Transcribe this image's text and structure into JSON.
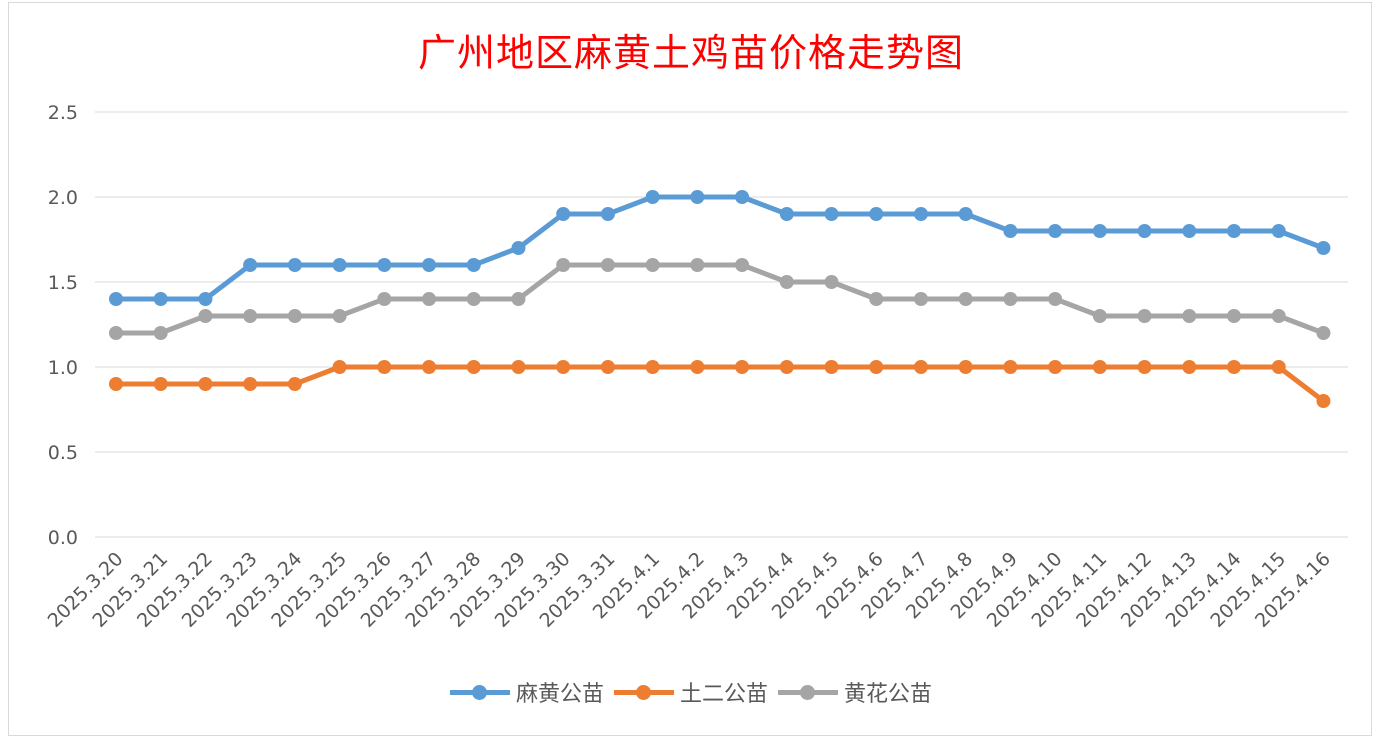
{
  "chart_data": {
    "type": "line",
    "title": "广州地区麻黄土鸡苗价格走势图",
    "xlabel": "",
    "ylabel": "",
    "ylim": [
      0,
      2.5
    ],
    "yticks": [
      "0.0",
      "0.5",
      "1.0",
      "1.5",
      "2.0",
      "2.5"
    ],
    "grid": true,
    "legend_position": "bottom",
    "categories": [
      "2025.3.20",
      "2025.3.21",
      "2025.3.22",
      "2025.3.23",
      "2025.3.24",
      "2025.3.25",
      "2025.3.26",
      "2025.3.27",
      "2025.3.28",
      "2025.3.29",
      "2025.3.30",
      "2025.3.31",
      "2025.4.1",
      "2025.4.2",
      "2025.4.3",
      "2025.4.4",
      "2025.4.5",
      "2025.4.6",
      "2025.4.7",
      "2025.4.8",
      "2025.4.9",
      "2025.4.10",
      "2025.4.11",
      "2025.4.12",
      "2025.4.13",
      "2025.4.14",
      "2025.4.15",
      "2025.4.16"
    ],
    "series": [
      {
        "name": "麻黄公苗",
        "color": "#5b9bd5",
        "values": [
          1.4,
          1.4,
          1.4,
          1.6,
          1.6,
          1.6,
          1.6,
          1.6,
          1.6,
          1.7,
          1.9,
          1.9,
          2.0,
          2.0,
          2.0,
          1.9,
          1.9,
          1.9,
          1.9,
          1.9,
          1.8,
          1.8,
          1.8,
          1.8,
          1.8,
          1.8,
          1.8,
          1.7
        ]
      },
      {
        "name": "土二公苗",
        "color": "#ed7d31",
        "values": [
          0.9,
          0.9,
          0.9,
          0.9,
          0.9,
          1.0,
          1.0,
          1.0,
          1.0,
          1.0,
          1.0,
          1.0,
          1.0,
          1.0,
          1.0,
          1.0,
          1.0,
          1.0,
          1.0,
          1.0,
          1.0,
          1.0,
          1.0,
          1.0,
          1.0,
          1.0,
          1.0,
          0.8
        ]
      },
      {
        "name": "黄花公苗",
        "color": "#a5a5a5",
        "values": [
          1.2,
          1.2,
          1.3,
          1.3,
          1.3,
          1.3,
          1.4,
          1.4,
          1.4,
          1.4,
          1.6,
          1.6,
          1.6,
          1.6,
          1.6,
          1.5,
          1.5,
          1.4,
          1.4,
          1.4,
          1.4,
          1.4,
          1.3,
          1.3,
          1.3,
          1.3,
          1.3,
          1.2
        ]
      }
    ]
  }
}
